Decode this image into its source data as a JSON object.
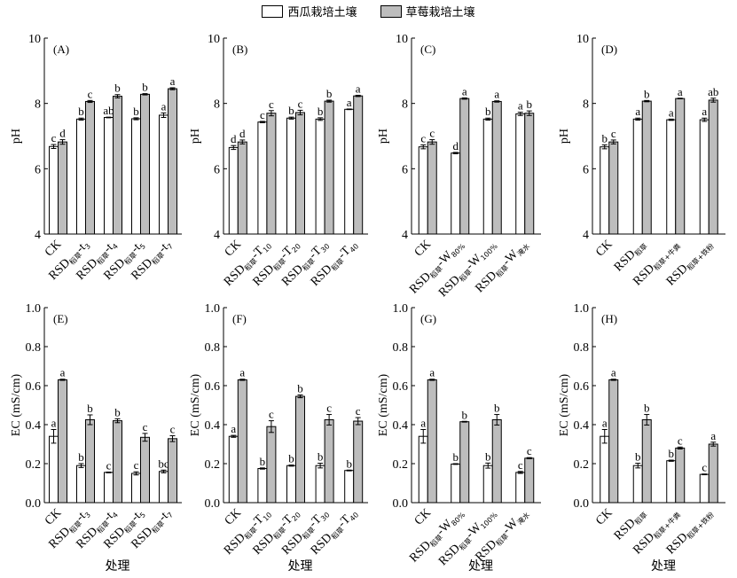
{
  "legend": {
    "series1": "西瓜栽培土壤",
    "series2": "草莓栽培土壤"
  },
  "colors": {
    "series1": "#ffffff",
    "series2": "#bdbdbd"
  },
  "chart_data": [
    {
      "type": "bar",
      "title": "(A)",
      "ylabel": "pH",
      "xlabel": "",
      "ylim": [
        4,
        10
      ],
      "yticks": [
        "4",
        "6",
        "8",
        "10"
      ],
      "categories": [
        {
          "main": "CK",
          "sub": ""
        },
        {
          "main": "RSD",
          "sub": "稻草",
          "suf": "-t",
          "sub2": "3"
        },
        {
          "main": "RSD",
          "sub": "稻草",
          "suf": "-t",
          "sub2": "4"
        },
        {
          "main": "RSD",
          "sub": "稻草",
          "suf": "-t",
          "sub2": "5"
        },
        {
          "main": "RSD",
          "sub": "稻草",
          "suf": "-t",
          "sub2": "7"
        }
      ],
      "series": [
        {
          "name": "西瓜栽培土壤",
          "values": [
            6.68,
            7.52,
            7.57,
            7.53,
            7.64
          ],
          "errors": [
            0.06,
            0.03,
            0.01,
            0.03,
            0.07
          ],
          "letters": [
            "c",
            "b",
            "ab",
            "b",
            "a"
          ]
        },
        {
          "name": "草莓栽培土壤",
          "values": [
            6.82,
            8.06,
            8.22,
            8.28,
            8.45
          ],
          "errors": [
            0.07,
            0.03,
            0.05,
            0.02,
            0.03
          ],
          "letters": [
            "d",
            "c",
            "b",
            "b",
            "a"
          ]
        }
      ]
    },
    {
      "type": "bar",
      "title": "(B)",
      "ylabel": "pH",
      "xlabel": "",
      "ylim": [
        4,
        10
      ],
      "yticks": [
        "4",
        "6",
        "8",
        "10"
      ],
      "categories": [
        {
          "main": "CK",
          "sub": ""
        },
        {
          "main": "RSD",
          "sub": "稻草",
          "suf": "-T",
          "sub2": "10"
        },
        {
          "main": "RSD",
          "sub": "稻草",
          "suf": "-T",
          "sub2": "20"
        },
        {
          "main": "RSD",
          "sub": "稻草",
          "suf": "-T",
          "sub2": "30"
        },
        {
          "main": "RSD",
          "sub": "稻草",
          "suf": "-T",
          "sub2": "40"
        }
      ],
      "series": [
        {
          "name": "西瓜栽培土壤",
          "values": [
            6.65,
            7.43,
            7.55,
            7.52,
            7.82
          ],
          "errors": [
            0.06,
            0.02,
            0.03,
            0.04,
            0.01
          ],
          "letters": [
            "d",
            "c",
            "b",
            "b",
            "a"
          ]
        },
        {
          "name": "草莓栽培土壤",
          "values": [
            6.82,
            7.7,
            7.72,
            8.07,
            8.23
          ],
          "errors": [
            0.06,
            0.08,
            0.07,
            0.03,
            0.02
          ],
          "letters": [
            "d",
            "c",
            "c",
            "b",
            "a"
          ]
        }
      ]
    },
    {
      "type": "bar",
      "title": "(C)",
      "ylabel": "pH",
      "xlabel": "",
      "ylim": [
        4,
        10
      ],
      "yticks": [
        "4",
        "6",
        "8",
        "10"
      ],
      "categories": [
        {
          "main": "CK",
          "sub": ""
        },
        {
          "main": "RSD",
          "sub": "稻草",
          "suf": "-W",
          "sub2": "80%"
        },
        {
          "main": "RSD",
          "sub": "稻草",
          "suf": "-W",
          "sub2": "100%"
        },
        {
          "main": "RSD",
          "sub": "稻草",
          "suf": "-W",
          "sub2": "淹水"
        }
      ],
      "series": [
        {
          "name": "西瓜栽培土壤",
          "values": [
            6.67,
            6.48,
            7.52,
            7.68
          ],
          "errors": [
            0.06,
            0.02,
            0.03,
            0.05
          ],
          "letters": [
            "c",
            "d",
            "b",
            "a"
          ]
        },
        {
          "name": "草莓栽培土壤",
          "values": [
            6.82,
            8.15,
            8.06,
            7.7
          ],
          "errors": [
            0.07,
            0.02,
            0.02,
            0.07
          ],
          "letters": [
            "c",
            "a",
            "a",
            "b"
          ]
        }
      ]
    },
    {
      "type": "bar",
      "title": "(D)",
      "ylabel": "pH",
      "xlabel": "",
      "ylim": [
        4,
        10
      ],
      "yticks": [
        "4",
        "6",
        "8",
        "10"
      ],
      "categories": [
        {
          "main": "CK",
          "sub": ""
        },
        {
          "main": "RSD",
          "sub": "稻草"
        },
        {
          "main": "RSD",
          "sub": "稻草+牛粪"
        },
        {
          "main": "RSD",
          "sub": "稻草+铁粉"
        }
      ],
      "series": [
        {
          "name": "西瓜栽培土壤",
          "values": [
            6.67,
            7.52,
            7.5,
            7.5
          ],
          "errors": [
            0.06,
            0.03,
            0.02,
            0.05
          ],
          "letters": [
            "b",
            "a",
            "a",
            "a"
          ]
        },
        {
          "name": "草莓栽培土壤",
          "values": [
            6.82,
            8.07,
            8.15,
            8.1
          ],
          "errors": [
            0.06,
            0.02,
            0.01,
            0.06
          ],
          "letters": [
            "c",
            "b",
            "a",
            "ab"
          ]
        }
      ]
    },
    {
      "type": "bar",
      "title": "(E)",
      "ylabel": "EC (mS/cm)",
      "xlabel": "处理",
      "ylim": [
        0,
        1
      ],
      "yticks": [
        "0.0",
        "0.2",
        "0.4",
        "0.6",
        "0.8",
        "1.0"
      ],
      "categories": [
        {
          "main": "CK",
          "sub": ""
        },
        {
          "main": "RSD",
          "sub": "稻草",
          "suf": "-t",
          "sub2": "3"
        },
        {
          "main": "RSD",
          "sub": "稻草",
          "suf": "-t",
          "sub2": "4"
        },
        {
          "main": "RSD",
          "sub": "稻草",
          "suf": "-t",
          "sub2": "5"
        },
        {
          "main": "RSD",
          "sub": "稻草",
          "suf": "-t",
          "sub2": "7"
        }
      ],
      "series": [
        {
          "name": "西瓜栽培土壤",
          "values": [
            0.34,
            0.19,
            0.155,
            0.15,
            0.16
          ],
          "errors": [
            0.035,
            0.01,
            0.002,
            0.008,
            0.007
          ],
          "letters": [
            "a",
            "b",
            "c",
            "c",
            "bc"
          ]
        },
        {
          "name": "草莓栽培土壤",
          "values": [
            0.63,
            0.425,
            0.42,
            0.335,
            0.328
          ],
          "errors": [
            0.003,
            0.025,
            0.01,
            0.02,
            0.015
          ],
          "letters": [
            "a",
            "b",
            "b",
            "c",
            "c"
          ]
        }
      ]
    },
    {
      "type": "bar",
      "title": "(F)",
      "ylabel": "EC (mS/cm)",
      "xlabel": "处理",
      "ylim": [
        0,
        1
      ],
      "yticks": [
        "0.0",
        "0.2",
        "0.4",
        "0.6",
        "0.8",
        "1.0"
      ],
      "categories": [
        {
          "main": "CK",
          "sub": ""
        },
        {
          "main": "RSD",
          "sub": "稻草",
          "suf": "-T",
          "sub2": "10"
        },
        {
          "main": "RSD",
          "sub": "稻草",
          "suf": "-T",
          "sub2": "20"
        },
        {
          "main": "RSD",
          "sub": "稻草",
          "suf": "-T",
          "sub2": "30"
        },
        {
          "main": "RSD",
          "sub": "稻草",
          "suf": "-T",
          "sub2": "40"
        }
      ],
      "series": [
        {
          "name": "西瓜栽培土壤",
          "values": [
            0.34,
            0.175,
            0.19,
            0.19,
            0.165
          ],
          "errors": [
            0.005,
            0.003,
            0.003,
            0.012,
            0.002
          ],
          "letters": [
            "a",
            "b",
            "b",
            "b",
            "b"
          ]
        },
        {
          "name": "草莓栽培土壤",
          "values": [
            0.63,
            0.39,
            0.545,
            0.425,
            0.418
          ],
          "errors": [
            0.003,
            0.03,
            0.007,
            0.027,
            0.018
          ],
          "letters": [
            "a",
            "c",
            "b",
            "c",
            "c"
          ]
        }
      ]
    },
    {
      "type": "bar",
      "title": "(G)",
      "ylabel": "EC (mS/cm)",
      "xlabel": "处理",
      "ylim": [
        0,
        1
      ],
      "yticks": [
        "0.0",
        "0.2",
        "0.4",
        "0.6",
        "0.8",
        "1.0"
      ],
      "categories": [
        {
          "main": "CK",
          "sub": ""
        },
        {
          "main": "RSD",
          "sub": "稻草",
          "suf": "-W",
          "sub2": "80%"
        },
        {
          "main": "RSD",
          "sub": "稻草",
          "suf": "-W",
          "sub2": "100%"
        },
        {
          "main": "RSD",
          "sub": "稻草",
          "suf": "-W",
          "sub2": "淹水"
        }
      ],
      "series": [
        {
          "name": "西瓜栽培土壤",
          "values": [
            0.34,
            0.198,
            0.19,
            0.155
          ],
          "errors": [
            0.035,
            0.002,
            0.013,
            0.005
          ],
          "letters": [
            "a",
            "b",
            "b",
            "c"
          ]
        },
        {
          "name": "草莓栽培土壤",
          "values": [
            0.63,
            0.415,
            0.425,
            0.228
          ],
          "errors": [
            0.003,
            0.002,
            0.027,
            0.003
          ],
          "letters": [
            "a",
            "b",
            "b",
            "c"
          ]
        }
      ]
    },
    {
      "type": "bar",
      "title": "(H)",
      "ylabel": "EC (mS/cm)",
      "xlabel": "处理",
      "ylim": [
        0,
        1
      ],
      "yticks": [
        "0.0",
        "0.2",
        "0.4",
        "0.6",
        "0.8",
        "1.0"
      ],
      "categories": [
        {
          "main": "CK",
          "sub": ""
        },
        {
          "main": "RSD",
          "sub": "稻草"
        },
        {
          "main": "RSD",
          "sub": "稻草+牛粪"
        },
        {
          "main": "RSD",
          "sub": "稻草+铁粉"
        }
      ],
      "series": [
        {
          "name": "西瓜栽培土壤",
          "values": [
            0.34,
            0.19,
            0.215,
            0.145
          ],
          "errors": [
            0.035,
            0.012,
            0.003,
            0.002
          ],
          "letters": [
            "a",
            "b",
            "b",
            "c"
          ]
        },
        {
          "name": "草莓栽培土壤",
          "values": [
            0.63,
            0.425,
            0.28,
            0.3
          ],
          "errors": [
            0.003,
            0.027,
            0.005,
            0.01
          ],
          "letters": [
            "a",
            "b",
            "c",
            "a"
          ]
        }
      ]
    }
  ]
}
